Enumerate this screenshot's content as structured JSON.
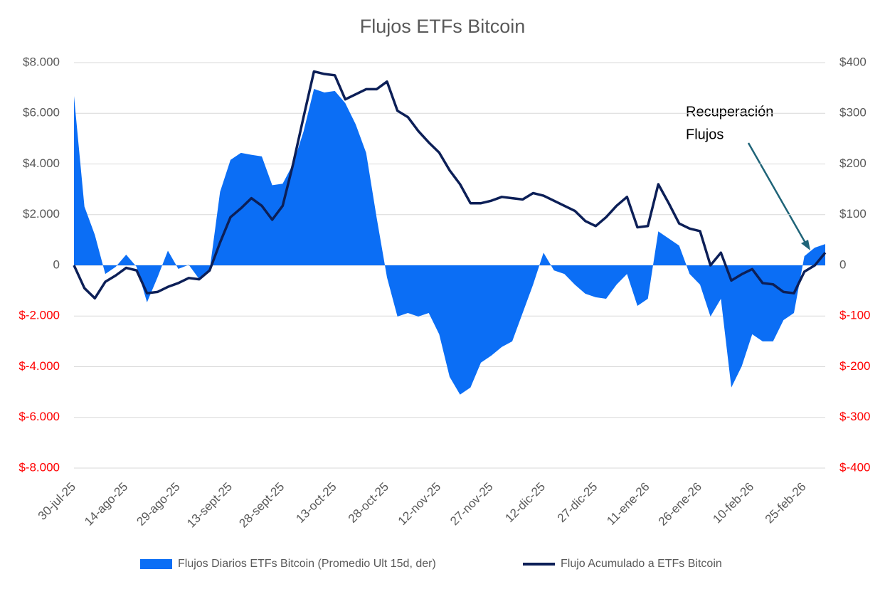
{
  "chart_data": {
    "type": "combo",
    "title": "Flujos ETFs Bitcoin",
    "categories": [
      "30-jul-25",
      null,
      null,
      null,
      null,
      "14-ago-25",
      null,
      null,
      null,
      null,
      "29-ago-25",
      null,
      null,
      null,
      null,
      "13-sept-25",
      null,
      null,
      null,
      null,
      "28-sept-25",
      null,
      null,
      null,
      null,
      "13-oct-25",
      null,
      null,
      null,
      null,
      "28-oct-25",
      null,
      null,
      null,
      null,
      "12-nov-25",
      null,
      null,
      null,
      null,
      "27-nov-25",
      null,
      null,
      null,
      null,
      "12-dic-25",
      null,
      null,
      null,
      null,
      "27-dic-25",
      null,
      null,
      null,
      null,
      "11-ene-26",
      null,
      null,
      null,
      null,
      "26-ene-26",
      null,
      null,
      null,
      null,
      "10-feb-26",
      null,
      null,
      null,
      null,
      "25-feb-26",
      null,
      null
    ],
    "series": [
      {
        "name": "Flujos Diarios ETFs Bitcoin (Promedio Ult 15d, der)",
        "type": "area",
        "axis": "y2",
        "color": "#0b6ef5",
        "values": [
          334,
          116,
          60,
          -17,
          -3,
          21,
          -3,
          -73,
          -24,
          29,
          -7,
          1,
          -27,
          -10,
          145,
          208,
          222,
          218,
          215,
          158,
          161,
          200,
          264,
          348,
          341,
          344,
          320,
          278,
          222,
          95,
          -24,
          -101,
          -94,
          -101,
          -94,
          -136,
          -220,
          -255,
          -241,
          -192,
          -178,
          -161,
          -150,
          -94,
          -38,
          25,
          -10,
          -17,
          -38,
          -56,
          -63,
          -66,
          -38,
          -17,
          -80,
          -66,
          67,
          53,
          39,
          -17,
          -38,
          -101,
          -66,
          -241,
          -199,
          -136,
          -150,
          -150,
          -108,
          -94,
          18,
          35,
          42
        ]
      },
      {
        "name": "Flujo Acumulado a ETFs Bitcoin",
        "type": "line",
        "color": "#0c1f57",
        "values": [
          0,
          -900,
          -1300,
          -650,
          -400,
          -100,
          -200,
          -1100,
          -1050,
          -850,
          -700,
          -500,
          -550,
          -200,
          900,
          1900,
          2250,
          2650,
          2350,
          1800,
          2350,
          4000,
          5850,
          7650,
          7550,
          7500,
          6550,
          6750,
          6950,
          6950,
          7250,
          6100,
          5850,
          5300,
          4850,
          4450,
          3750,
          3200,
          2450,
          2450,
          2550,
          2700,
          2650,
          2600,
          2850,
          2750,
          2550,
          2350,
          2150,
          1750,
          1550,
          1900,
          2350,
          2700,
          1500,
          1550,
          3200,
          2450,
          1650,
          1450,
          1350,
          0,
          500,
          -600,
          -350,
          -150,
          -700,
          -750,
          -1050,
          -1100,
          -250,
          0,
          500
        ]
      }
    ],
    "ylim": [
      -8000,
      8000
    ],
    "yticks": [
      {
        "value": 8000,
        "label": "$8.000"
      },
      {
        "value": 6000,
        "label": "$6.000"
      },
      {
        "value": 4000,
        "label": "$4.000"
      },
      {
        "value": 2000,
        "label": "$2.000"
      },
      0,
      {
        "value": -2000,
        "label": "$-2.000"
      },
      {
        "value": -4000,
        "label": "$-4.000"
      },
      {
        "value": -6000,
        "label": "$-6.000"
      },
      {
        "value": -8000,
        "label": "$-8.000"
      }
    ],
    "y2lim": [
      -400,
      400
    ],
    "y2ticks": [
      {
        "value": 400,
        "label": "$400"
      },
      {
        "value": 300,
        "label": "$300"
      },
      {
        "value": 200,
        "label": "$200"
      },
      {
        "value": 100,
        "label": "$100"
      },
      0,
      {
        "value": -100,
        "label": "$-100"
      },
      {
        "value": -200,
        "label": "$-200"
      },
      {
        "value": -300,
        "label": "$-300"
      },
      {
        "value": -400,
        "label": "$-400"
      }
    ],
    "grid": true,
    "negative_tick_color": "#ff0000",
    "legend": "bottom",
    "annotation": {
      "lines": [
        "Recuperación",
        "Flujos"
      ]
    }
  }
}
